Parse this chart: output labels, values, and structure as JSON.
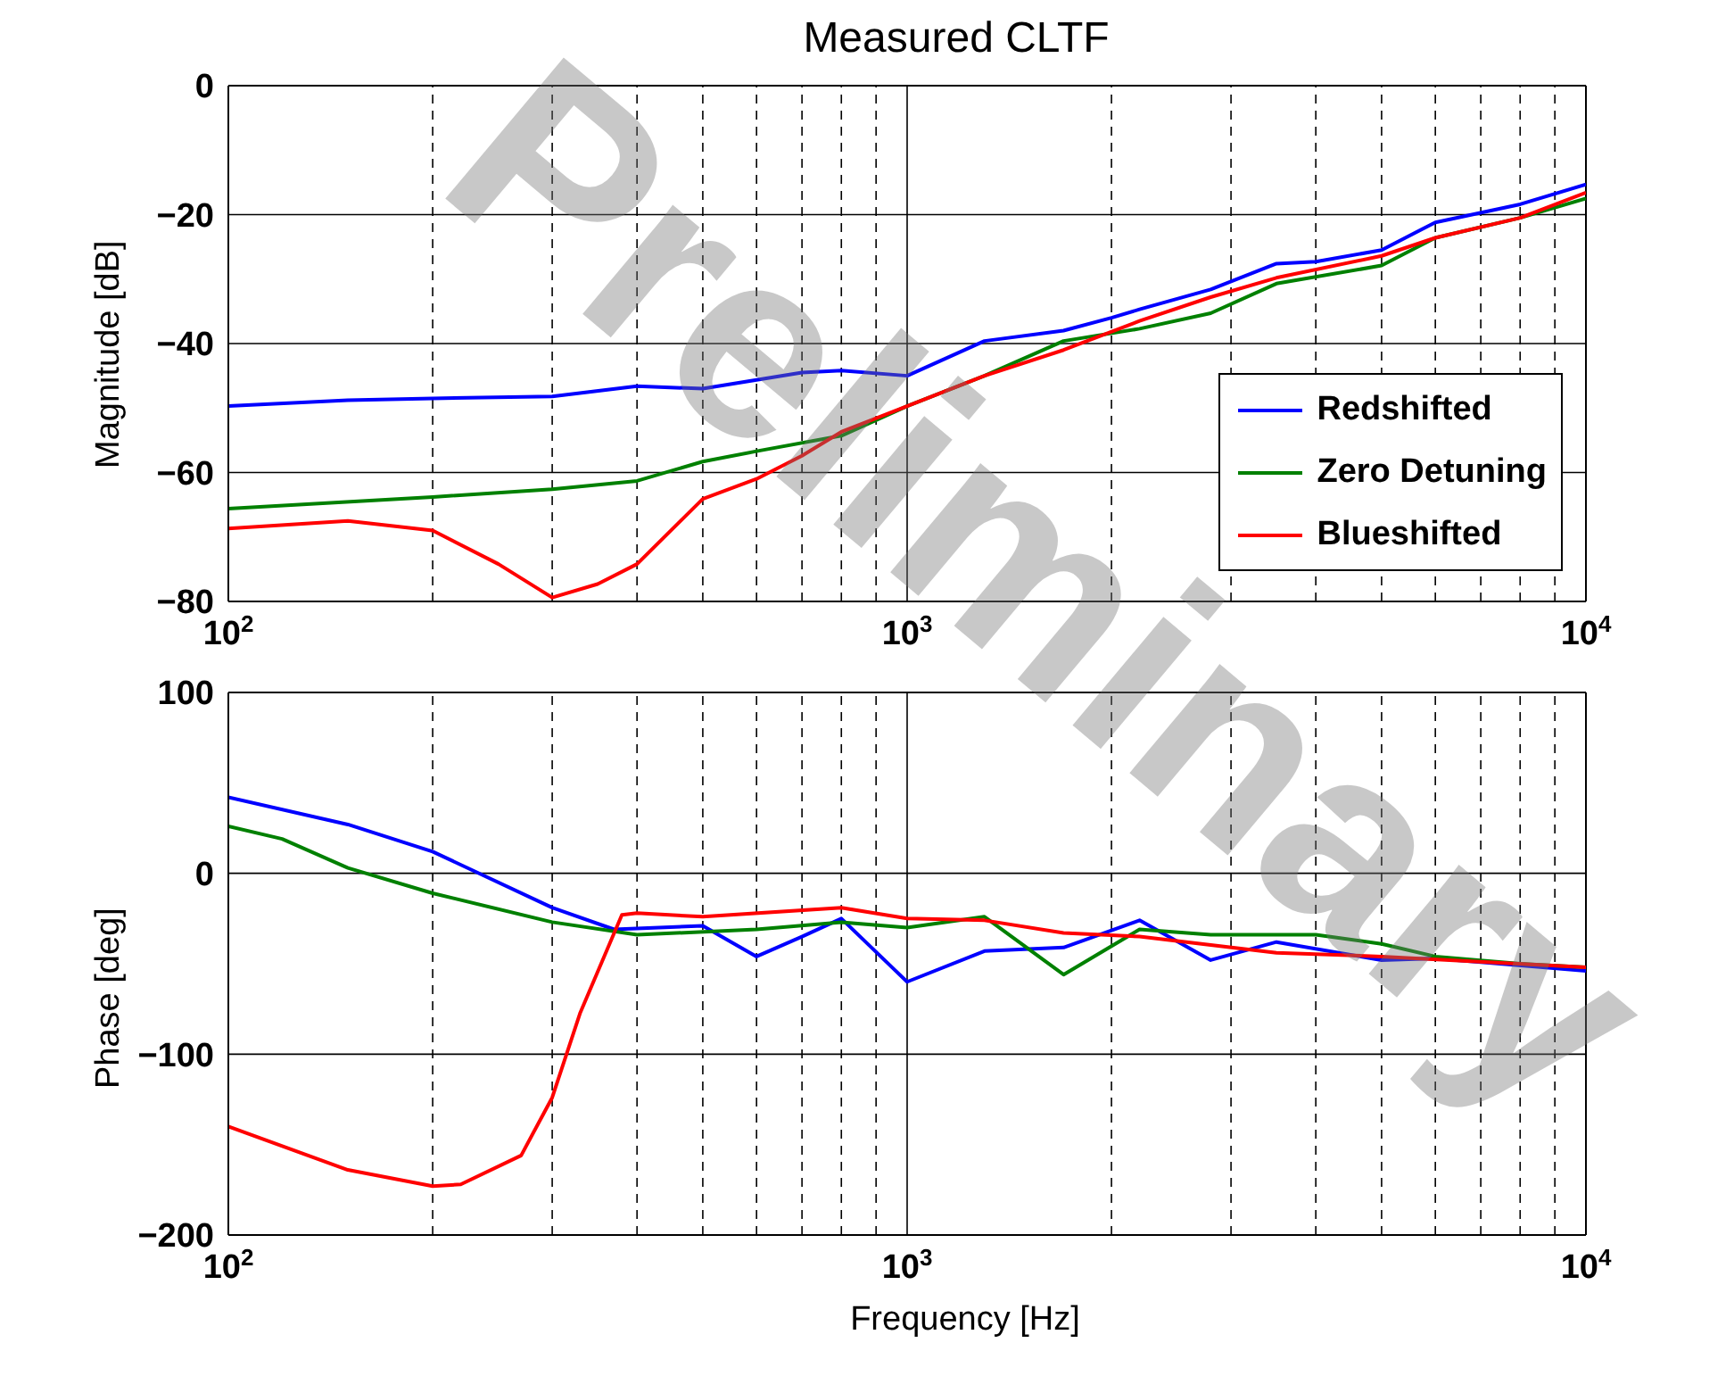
{
  "chart_data": [
    {
      "type": "line",
      "title": "Measured CLTF",
      "ylabel": "Magnitude [dB]",
      "log": "x",
      "grid": true,
      "legend": "bottom right",
      "marker": "none",
      "line_style": "solid",
      "xlim": [
        100,
        10000
      ],
      "ylim": [
        -80,
        0
      ],
      "yticks": [
        -80,
        -60,
        -40,
        -20,
        0
      ],
      "xticks": [
        {
          "value": 100,
          "label": "10$^{2}$"
        },
        {
          "value": 200,
          "label": null
        },
        {
          "value": 300,
          "label": null
        },
        {
          "value": 400,
          "label": null
        },
        {
          "value": 500,
          "label": null
        },
        {
          "value": 600,
          "label": null
        },
        {
          "value": 700,
          "label": null
        },
        {
          "value": 800,
          "label": null
        },
        {
          "value": 900,
          "label": null
        },
        {
          "value": 1000,
          "label": "10$^{3}$"
        },
        {
          "value": 2000,
          "label": null
        },
        {
          "value": 3000,
          "label": null
        },
        {
          "value": 4000,
          "label": null
        },
        {
          "value": 5000,
          "label": null
        },
        {
          "value": 6000,
          "label": null
        },
        {
          "value": 7000,
          "label": null
        },
        {
          "value": 8000,
          "label": null
        },
        {
          "value": 9000,
          "label": null
        },
        {
          "value": 10000,
          "label": "10$^{4}$"
        }
      ],
      "annotations": [
        "Preliminary"
      ],
      "series": [
        {
          "name": "Redshifted",
          "color": "#0000ff",
          "x": [
            100,
            150,
            200,
            300,
            400,
            500,
            700,
            800,
            1000,
            1300,
            1700,
            2000,
            2200,
            2800,
            3500,
            4000,
            5000,
            6000,
            8000,
            10000
          ],
          "values": [
            -49.7,
            -48.8,
            -48.5,
            -48.2,
            -46.6,
            -47,
            -44.5,
            -44.2,
            -45,
            -39.6,
            -38,
            -36,
            -34.7,
            -31.6,
            -27.6,
            -27.3,
            -25.5,
            -21.2,
            -18.4,
            -15.3
          ]
        },
        {
          "name": "Zero Detuning",
          "color": "#008000",
          "x": [
            100,
            200,
            300,
            400,
            500,
            600,
            800,
            1000,
            1300,
            1700,
            2200,
            2800,
            3500,
            5000,
            6000,
            8000,
            10000
          ],
          "values": [
            -65.6,
            -63.8,
            -62.6,
            -61.3,
            -58.3,
            -56.7,
            -54.3,
            -49.7,
            -45,
            -39.6,
            -37.7,
            -35.3,
            -30.7,
            -27.9,
            -23.6,
            -20.5,
            -17.5
          ]
        },
        {
          "name": "Blueshifted",
          "color": "#ff0000",
          "x": [
            100,
            150,
            200,
            250,
            300,
            350,
            400,
            500,
            600,
            700,
            800,
            1000,
            1300,
            1700,
            2200,
            2800,
            3500,
            5000,
            6000,
            8000,
            10000
          ],
          "values": [
            -68.7,
            -67.5,
            -69,
            -74.2,
            -79.4,
            -77.3,
            -74.2,
            -64.1,
            -61,
            -57.4,
            -53.7,
            -49.7,
            -45,
            -41,
            -36.5,
            -32.8,
            -29.8,
            -26.4,
            -23.6,
            -20.5,
            -16.6
          ]
        }
      ]
    },
    {
      "type": "line",
      "xlabel": "Frequency [Hz]",
      "ylabel": "Phase [deg]",
      "log": "x",
      "grid": true,
      "marker": "none",
      "line_style": "solid",
      "xlim": [
        100,
        10000
      ],
      "ylim": [
        -200,
        100
      ],
      "yticks": [
        -200,
        -100,
        0,
        100
      ],
      "xticks": [
        {
          "value": 100,
          "label": "10$^{2}$"
        },
        {
          "value": 200,
          "label": null
        },
        {
          "value": 300,
          "label": null
        },
        {
          "value": 400,
          "label": null
        },
        {
          "value": 500,
          "label": null
        },
        {
          "value": 600,
          "label": null
        },
        {
          "value": 700,
          "label": null
        },
        {
          "value": 800,
          "label": null
        },
        {
          "value": 900,
          "label": null
        },
        {
          "value": 1000,
          "label": "10$^{3}$"
        },
        {
          "value": 2000,
          "label": null
        },
        {
          "value": 3000,
          "label": null
        },
        {
          "value": 4000,
          "label": null
        },
        {
          "value": 5000,
          "label": null
        },
        {
          "value": 6000,
          "label": null
        },
        {
          "value": 7000,
          "label": null
        },
        {
          "value": 8000,
          "label": null
        },
        {
          "value": 9000,
          "label": null
        },
        {
          "value": 10000,
          "label": "10$^{4}$"
        }
      ],
      "series": [
        {
          "color": "#0000ff",
          "x": [
            100,
            150,
            200,
            300,
            370,
            500,
            600,
            700,
            800,
            1000,
            1300,
            1700,
            2200,
            2800,
            3500,
            5000,
            6000,
            10000
          ],
          "values": [
            42,
            27,
            12,
            -19,
            -31,
            -29,
            -46,
            -35,
            -25,
            -60,
            -43,
            -41,
            -26,
            -48,
            -38,
            -48,
            -47,
            -54
          ]
        },
        {
          "color": "#008000",
          "x": [
            100,
            120,
            150,
            200,
            300,
            400,
            600,
            800,
            1000,
            1300,
            1700,
            2200,
            2800,
            4000,
            5000,
            6000,
            8000,
            10000
          ],
          "values": [
            26,
            19,
            3,
            -11,
            -27,
            -34,
            -31,
            -27,
            -30,
            -24,
            -56,
            -31,
            -34,
            -34,
            -39,
            -46,
            -50,
            -52
          ]
        },
        {
          "color": "#ff0000",
          "x": [
            100,
            150,
            200,
            220,
            270,
            300,
            330,
            380,
            400,
            500,
            800,
            1000,
            1300,
            1700,
            2200,
            3500,
            5000,
            10000
          ],
          "values": [
            -140,
            -164,
            -173,
            -172,
            -156,
            -124,
            -77,
            -23,
            -22,
            -24,
            -19,
            -25,
            -26,
            -33,
            -35,
            -44,
            -46,
            -52
          ]
        }
      ]
    }
  ]
}
